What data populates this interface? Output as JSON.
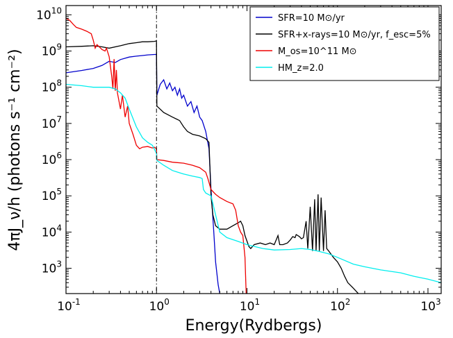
{
  "chart_data": {
    "type": "line",
    "xlabel": "Energy(Rydbergs)",
    "ylabel": "4πJ_ν/h (photons s⁻¹ cm⁻²)",
    "xscale": "log",
    "yscale": "log",
    "xlim": [
      0.1,
      1400
    ],
    "ylim": [
      200,
      18000000000
    ],
    "xticks": [
      {
        "value": 0.1,
        "base": "10",
        "exp": "-1"
      },
      {
        "value": 1,
        "base": "10",
        "exp": "0"
      },
      {
        "value": 10,
        "base": "10",
        "exp": "1"
      },
      {
        "value": 100,
        "base": "10",
        "exp": "2"
      },
      {
        "value": 1000,
        "base": "10",
        "exp": "3"
      }
    ],
    "yticks": [
      {
        "value": 1000,
        "base": "10",
        "exp": "3"
      },
      {
        "value": 10000,
        "base": "10",
        "exp": "4"
      },
      {
        "value": 100000,
        "base": "10",
        "exp": "5"
      },
      {
        "value": 1000000,
        "base": "10",
        "exp": "6"
      },
      {
        "value": 10000000,
        "base": "10",
        "exp": "7"
      },
      {
        "value": 100000000,
        "base": "10",
        "exp": "8"
      },
      {
        "value": 1000000000,
        "base": "10",
        "exp": "9"
      },
      {
        "value": 10000000000,
        "base": "10",
        "exp": "10"
      }
    ],
    "vline": {
      "x": 1.0,
      "style": "dash-dot",
      "color": "#000000"
    },
    "legend_position": "top-right",
    "series": [
      {
        "name": "SFR=10 M⊙/yr",
        "color": "#0000cc",
        "points": [
          [
            0.1,
            250000000.0
          ],
          [
            0.15,
            290000000.0
          ],
          [
            0.2,
            330000000.0
          ],
          [
            0.25,
            400000000.0
          ],
          [
            0.3,
            520000000.0
          ],
          [
            0.35,
            480000000.0
          ],
          [
            0.4,
            580000000.0
          ],
          [
            0.5,
            680000000.0
          ],
          [
            0.6,
            720000000.0
          ],
          [
            0.7,
            750000000.0
          ],
          [
            0.8,
            780000000.0
          ],
          [
            0.95,
            800000000.0
          ],
          [
            1.0,
            800000000.0
          ],
          [
            1.01,
            60000000.0
          ],
          [
            1.1,
            120000000.0
          ],
          [
            1.2,
            160000000.0
          ],
          [
            1.3,
            90000000.0
          ],
          [
            1.4,
            130000000.0
          ],
          [
            1.5,
            80000000.0
          ],
          [
            1.6,
            100000000.0
          ],
          [
            1.7,
            60000000.0
          ],
          [
            1.8,
            90000000.0
          ],
          [
            1.9,
            50000000.0
          ],
          [
            2.0,
            60000000.0
          ],
          [
            2.2,
            30000000.0
          ],
          [
            2.4,
            40000000.0
          ],
          [
            2.6,
            20000000.0
          ],
          [
            2.8,
            30000000.0
          ],
          [
            3.0,
            15000000.0
          ],
          [
            3.2,
            12000000.0
          ],
          [
            3.5,
            6000000.0
          ],
          [
            3.8,
            2000000.0
          ],
          [
            4.0,
            150000.0
          ],
          [
            4.3,
            10000.0
          ],
          [
            4.5,
            1500.0
          ],
          [
            4.8,
            350.0
          ],
          [
            5.0,
            200
          ]
        ]
      },
      {
        "name": "SFR+x-rays=10 M⊙/yr, f_esc=5%",
        "color": "#000000",
        "points": [
          [
            0.1,
            1300000000.0
          ],
          [
            0.15,
            1350000000.0
          ],
          [
            0.2,
            1400000000.0
          ],
          [
            0.25,
            1300000000.0
          ],
          [
            0.3,
            1200000000.0
          ],
          [
            0.4,
            1400000000.0
          ],
          [
            0.5,
            1600000000.0
          ],
          [
            0.6,
            1700000000.0
          ],
          [
            0.7,
            1800000000.0
          ],
          [
            0.8,
            1800000000.0
          ],
          [
            0.95,
            1850000000.0
          ],
          [
            1.0,
            1900000000.0
          ],
          [
            1.01,
            30000000.0
          ],
          [
            1.2,
            20000000.0
          ],
          [
            1.5,
            15000000.0
          ],
          [
            1.8,
            12000000.0
          ],
          [
            2.0,
            8000000.0
          ],
          [
            2.2,
            6000000.0
          ],
          [
            2.5,
            5000000.0
          ],
          [
            3.0,
            4500000.0
          ],
          [
            3.5,
            3800000.0
          ],
          [
            3.8,
            3000000.0
          ],
          [
            4.0,
            100000.0
          ],
          [
            4.2,
            30000.0
          ],
          [
            4.5,
            15000.0
          ],
          [
            5.0,
            12000.0
          ],
          [
            6.0,
            12000.0
          ],
          [
            7.0,
            15000.0
          ],
          [
            8.0,
            18000.0
          ],
          [
            8.5,
            20000.0
          ],
          [
            9.0,
            15000.0
          ],
          [
            9.5,
            8000.0
          ],
          [
            10.5,
            4000.0
          ],
          [
            11.0,
            3500.0
          ],
          [
            12.0,
            4500.0
          ],
          [
            14.0,
            5000.0
          ],
          [
            16.0,
            4500.0
          ],
          [
            18.0,
            5000.0
          ],
          [
            20.0,
            4500.0
          ],
          [
            22.0,
            8000.0
          ],
          [
            23.0,
            4500.0
          ],
          [
            25.0,
            4500.0
          ],
          [
            28.0,
            5000.0
          ],
          [
            30.0,
            6000.0
          ],
          [
            32.0,
            7500.0
          ],
          [
            34.0,
            7000.0
          ],
          [
            35.0,
            8500.0
          ],
          [
            38.0,
            7500.0
          ],
          [
            40.0,
            6500.0
          ],
          [
            42.0,
            7000.0
          ],
          [
            45.0,
            20000.0
          ],
          [
            47.0,
            3500.0
          ],
          [
            50.0,
            50000.0
          ],
          [
            53.0,
            3000.0
          ],
          [
            56.0,
            80000.0
          ],
          [
            58.0,
            3000.0
          ],
          [
            61.0,
            110000.0
          ],
          [
            63.0,
            3000.0
          ],
          [
            66.0,
            90000.0
          ],
          [
            70.0,
            3000.0
          ],
          [
            73.0,
            40000.0
          ],
          [
            76.0,
            3500.0
          ],
          [
            80.0,
            3000.0
          ],
          [
            90.0,
            2000.0
          ],
          [
            100.0,
            1500.0
          ],
          [
            110.0,
            1000.0
          ],
          [
            120.0,
            600.0
          ],
          [
            130.0,
            400.0
          ],
          [
            150.0,
            280.0
          ],
          [
            170.0,
            200
          ]
        ]
      },
      {
        "name": "M_os=10^11 M⊙",
        "color": "#ee0000",
        "points": [
          [
            0.1,
            8000000000.0
          ],
          [
            0.11,
            7000000000.0
          ],
          [
            0.12,
            5500000000.0
          ],
          [
            0.13,
            4500000000.0
          ],
          [
            0.15,
            4000000000.0
          ],
          [
            0.17,
            3500000000.0
          ],
          [
            0.19,
            3000000000.0
          ],
          [
            0.2,
            2000000000.0
          ],
          [
            0.21,
            1200000000.0
          ],
          [
            0.22,
            1500000000.0
          ],
          [
            0.25,
            1100000000.0
          ],
          [
            0.27,
            1000000000.0
          ],
          [
            0.28,
            1200000000.0
          ],
          [
            0.3,
            700000000.0
          ],
          [
            0.32,
            200000000.0
          ],
          [
            0.33,
            90000000.0
          ],
          [
            0.34,
            600000000.0
          ],
          [
            0.35,
            80000000.0
          ],
          [
            0.36,
            300000000.0
          ],
          [
            0.37,
            70000000.0
          ],
          [
            0.4,
            25000000.0
          ],
          [
            0.42,
            60000000.0
          ],
          [
            0.45,
            15000000.0
          ],
          [
            0.48,
            30000000.0
          ],
          [
            0.5,
            10000000.0
          ],
          [
            0.55,
            5000000.0
          ],
          [
            0.6,
            2500000.0
          ],
          [
            0.65,
            2000000.0
          ],
          [
            0.7,
            2200000.0
          ],
          [
            0.8,
            2300000.0
          ],
          [
            0.9,
            2100000.0
          ],
          [
            0.95,
            2200000.0
          ],
          [
            1.0,
            2000000.0
          ],
          [
            1.01,
            1000000.0
          ],
          [
            1.2,
            950000.0
          ],
          [
            1.5,
            850000.0
          ],
          [
            2.0,
            800000.0
          ],
          [
            2.5,
            700000.0
          ],
          [
            3.0,
            600000.0
          ],
          [
            3.5,
            450000.0
          ],
          [
            3.7,
            300000.0
          ],
          [
            4.0,
            150000.0
          ],
          [
            4.5,
            110000.0
          ],
          [
            5.0,
            90000.0
          ],
          [
            6.0,
            70000.0
          ],
          [
            7.0,
            60000.0
          ],
          [
            7.5,
            40000.0
          ],
          [
            8.0,
            15000.0
          ],
          [
            8.5,
            10000.0
          ],
          [
            9.0,
            8000.0
          ],
          [
            9.5,
            2000.0
          ],
          [
            9.8,
            200
          ]
        ]
      },
      {
        "name": "HM_z=2.0",
        "color": "#00eeee",
        "points": [
          [
            0.1,
            120000000.0
          ],
          [
            0.15,
            110000000.0
          ],
          [
            0.2,
            100000000.0
          ],
          [
            0.25,
            100000000.0
          ],
          [
            0.3,
            100000000.0
          ],
          [
            0.35,
            90000000.0
          ],
          [
            0.4,
            70000000.0
          ],
          [
            0.45,
            50000000.0
          ],
          [
            0.5,
            25000000.0
          ],
          [
            0.6,
            8000000.0
          ],
          [
            0.7,
            4000000.0
          ],
          [
            0.8,
            3000000.0
          ],
          [
            0.9,
            2500000.0
          ],
          [
            1.0,
            1500000.0
          ],
          [
            1.01,
            950000.0
          ],
          [
            1.2,
            700000.0
          ],
          [
            1.5,
            500000.0
          ],
          [
            2.0,
            400000.0
          ],
          [
            2.5,
            350000.0
          ],
          [
            3.0,
            320000.0
          ],
          [
            3.2,
            300000.0
          ],
          [
            3.3,
            150000.0
          ],
          [
            3.5,
            120000.0
          ],
          [
            4.0,
            100000.0
          ],
          [
            4.5,
            30000.0
          ],
          [
            5.0,
            10000.0
          ],
          [
            6.0,
            7000.0
          ],
          [
            8.0,
            5500.0
          ],
          [
            10.0,
            4500.0
          ],
          [
            15.0,
            3500.0
          ],
          [
            20.0,
            3200.0
          ],
          [
            30.0,
            3300.0
          ],
          [
            40.0,
            3500.0
          ],
          [
            50.0,
            3300.0
          ],
          [
            60.0,
            3000.0
          ],
          [
            80.0,
            2500.0
          ],
          [
            100.0,
            2000.0
          ],
          [
            150.0,
            1300.0
          ],
          [
            200.0,
            1100.0
          ],
          [
            300.0,
            900.0
          ],
          [
            500.0,
            750.0
          ],
          [
            700.0,
            600.0
          ],
          [
            1000.0,
            500.0
          ],
          [
            1400.0,
            400.0
          ]
        ]
      }
    ]
  }
}
